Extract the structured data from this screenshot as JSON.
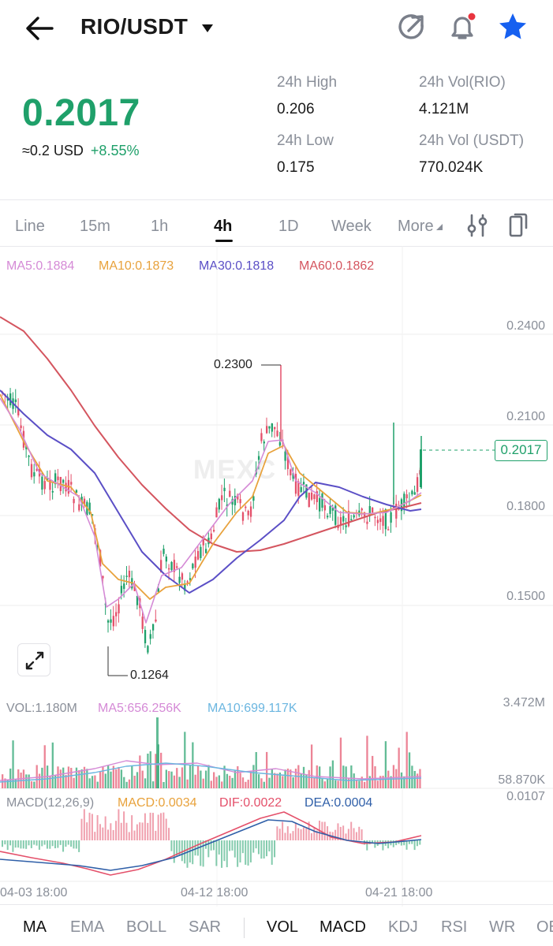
{
  "header": {
    "pair": "RIO/USDT",
    "icons": [
      "back-arrow-icon",
      "caret-down-icon",
      "refresh-icon",
      "bell-icon",
      "star-icon"
    ]
  },
  "ticker": {
    "last_price": "0.2017",
    "usd_value": "≈0.2 USD",
    "change_pct": "+8.55%",
    "high_label": "24h High",
    "high_value": "0.206",
    "low_label": "24h Low",
    "low_value": "0.175",
    "vol_rio_label": "24h Vol(RIO)",
    "vol_rio_value": "4.121M",
    "vol_usdt_label": "24h Vol (USDT)",
    "vol_usdt_value": "770.024K"
  },
  "timeframes": {
    "items": [
      "Line",
      "15m",
      "1h",
      "4h",
      "1D",
      "Week",
      "More"
    ],
    "active": "4h"
  },
  "main_chart": {
    "ma_legend": {
      "ma5": "MA5:0.1884",
      "ma10": "MA10:0.1873",
      "ma30": "MA30:0.1818",
      "ma60": "MA60:0.1862"
    },
    "y_axis": [
      "0.2400",
      "0.2100",
      "0.1800",
      "0.1500"
    ],
    "max_label": "0.2300",
    "min_label": "0.1264",
    "current_price_tag": "0.2017",
    "watermark": "MEXC"
  },
  "volume": {
    "vol": "VOL:1.180M",
    "ma5": "MA5:656.256K",
    "ma10": "MA10:699.117K",
    "axis_top": "3.472M",
    "axis_bottom": "58.870K"
  },
  "macd": {
    "title": "MACD(12,26,9)",
    "macd": "MACD:0.0034",
    "dif": "DIF:0.0022",
    "dea": "DEA:0.0004",
    "axis_top": "0.0107"
  },
  "x_axis": [
    "04-03 18:00",
    "04-12 18:00",
    "04-21 18:00"
  ],
  "indicator_tabs": {
    "main": [
      "MA",
      "EMA",
      "BOLL",
      "SAR"
    ],
    "sub": [
      "VOL",
      "MACD",
      "KDJ",
      "RSI",
      "WR",
      "OB"
    ]
  },
  "colors": {
    "up": "#1fa06a",
    "down": "#e4506a",
    "ma5": "#d58ad6",
    "ma10": "#e8a23c",
    "ma30": "#5b4fc6",
    "ma60": "#d4555f",
    "accent_star": "#1660f0"
  }
}
